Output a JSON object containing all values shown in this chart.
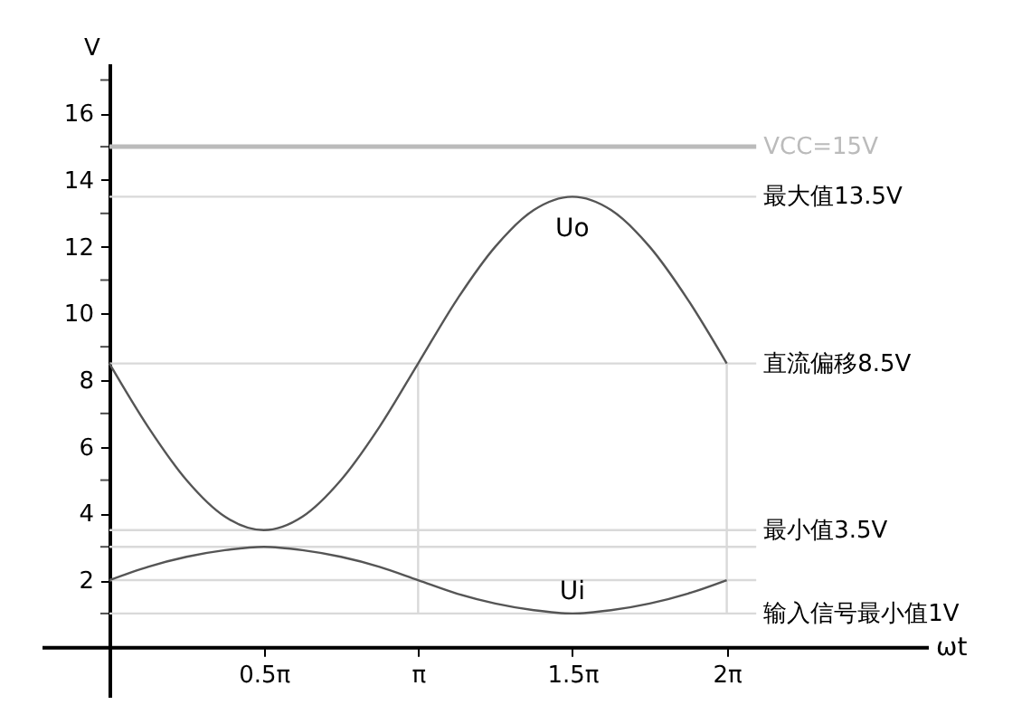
{
  "chart_data": {
    "type": "line",
    "xlabel": "ωt",
    "ylabel": "V",
    "x": [
      0,
      0.393,
      0.785,
      1.178,
      1.571,
      1.963,
      2.356,
      2.749,
      3.142,
      3.534,
      3.927,
      4.32,
      4.712,
      5.105,
      5.498,
      5.89,
      6.283
    ],
    "series": [
      {
        "name": "Uo",
        "color": "#555555",
        "values": [
          8.5,
          6.6,
          5.0,
          3.9,
          3.5,
          3.9,
          5.0,
          6.6,
          8.5,
          10.4,
          12.0,
          13.1,
          13.5,
          13.1,
          12.0,
          10.4,
          8.5
        ]
      },
      {
        "name": "Ui",
        "color": "#555555",
        "values": [
          2,
          2.4,
          2.7,
          2.9,
          3,
          2.9,
          2.7,
          2.4,
          2,
          1.6,
          1.3,
          1.1,
          1,
          1.1,
          1.3,
          1.6,
          2
        ]
      }
    ],
    "xlim": [
      -0.69,
      8.33
    ],
    "ylim": [
      -1.5,
      17.5
    ],
    "xticks": [
      {
        "value": 1.571,
        "label": "0.5π"
      },
      {
        "value": 3.142,
        "label": "π"
      },
      {
        "value": 4.712,
        "label": "1.5π"
      },
      {
        "value": 6.283,
        "label": "2π"
      }
    ],
    "yticks": [
      {
        "value": 1,
        "label": null
      },
      2,
      {
        "value": 3,
        "label": null
      },
      4,
      {
        "value": 5,
        "label": null
      },
      6,
      {
        "value": 7,
        "label": null
      },
      8,
      {
        "value": 9,
        "label": null
      },
      10,
      {
        "value": 11,
        "label": null
      },
      12,
      {
        "value": 13,
        "label": null
      },
      14,
      {
        "value": 15,
        "label": null
      },
      16,
      {
        "value": 17,
        "label": null
      }
    ],
    "ref_lines": [
      {
        "axis": "y",
        "value": 15,
        "label": "VCC=15V",
        "color": "#bbbbbb"
      },
      {
        "axis": "y",
        "value": 13.5,
        "label": "最大值13.5V",
        "color": "#d9d9d9"
      },
      {
        "axis": "y",
        "value": 8.5,
        "label": "直流偏移8.5V",
        "color": "#d9d9d9"
      },
      {
        "axis": "y",
        "value": 3.5,
        "label": "最小值3.5V",
        "color": "#d9d9d9"
      },
      {
        "axis": "y",
        "value": 3,
        "color": "#d9d9d9"
      },
      {
        "axis": "y",
        "value": 2,
        "color": "#d9d9d9"
      },
      {
        "axis": "y",
        "value": 1,
        "label": "输入信号最小值1V",
        "color": "#d9d9d9"
      },
      {
        "axis": "x",
        "value": 3.142,
        "color": "#d9d9d9"
      },
      {
        "axis": "x",
        "value": 6.283,
        "color": "#d9d9d9"
      }
    ],
    "grid": false,
    "marker": "none",
    "line_style": "solid"
  }
}
